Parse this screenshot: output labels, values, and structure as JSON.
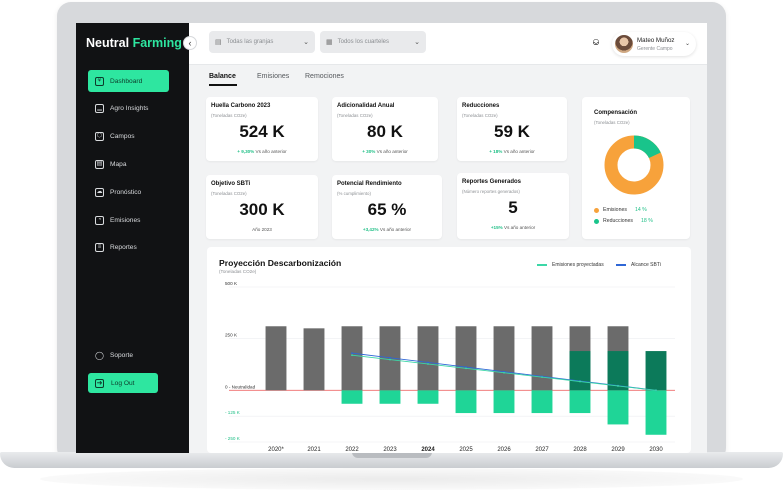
{
  "sidebar": {
    "brand_main": "Neutral",
    "brand_accent": "Farming",
    "items": [
      {
        "label": "Dashboard",
        "icon": "plant-icon",
        "active": true
      },
      {
        "label": "Agro Insights",
        "icon": "bar-chart-icon",
        "active": false
      },
      {
        "label": "Campos",
        "icon": "field-icon",
        "active": false
      },
      {
        "label": "Mapa",
        "icon": "map-icon",
        "active": false
      },
      {
        "label": "Pronóstico",
        "icon": "forecast-icon",
        "active": false
      },
      {
        "label": "Emisiones",
        "icon": "gauge-icon",
        "active": false
      },
      {
        "label": "Reportes",
        "icon": "stack-icon",
        "active": false
      }
    ],
    "support_label": "Soporte",
    "logout_label": "Log Out"
  },
  "topbar": {
    "farms_placeholder": "Todas las granjas",
    "fields_placeholder": "Todos los cuarteles",
    "user_name": "Mateo Muñoz",
    "user_role": "Gerente Campo"
  },
  "tabs": [
    "Balance",
    "Emisiones",
    "Remociones"
  ],
  "cards": {
    "huella": {
      "title": "Huella Carbono 2023",
      "unit": "(Toneladas CO2e)",
      "value": "524 K",
      "delta": "+ 9,30%",
      "delta_label": "Vs año anterior"
    },
    "adicionalidad": {
      "title": "Adicionalidad Anual",
      "unit": "(Toneladas CO2e)",
      "value": "80 K",
      "delta": "+ 30%",
      "delta_label": "Vs año anterior"
    },
    "reducciones": {
      "title": "Reducciones",
      "unit": "(Toneladas CO2e)",
      "value": "59 K",
      "delta": "+ 18%",
      "delta_label": "Vs año anterior"
    },
    "sbti": {
      "title": "Objetivo SBTi",
      "unit": "(Toneladas CO2e)",
      "value": "300 K",
      "delta_label": "Año 2023"
    },
    "rendimiento": {
      "title": "Potencial Rendimiento",
      "unit": "(% cumplimiento)",
      "value": "65 %",
      "delta": "+3,42%",
      "delta_label": "Vs año anterior"
    },
    "reportes": {
      "title": "Reportes Generados",
      "unit": "(Número reportes generados)",
      "value": "5",
      "delta": "+15%",
      "delta_label": "Vs año anterior"
    }
  },
  "compensacion": {
    "title": "Compensación",
    "unit": "(Toneladas CO2e)",
    "legend": [
      {
        "label": "Emisiones",
        "value": "14 %",
        "color": "#f7a23b"
      },
      {
        "label": "Reducciones",
        "value": "18 %",
        "color": "#19c48b"
      }
    ]
  },
  "chart": {
    "title": "Proyección Descarbonización",
    "subtitle": "(Toneladas CO2e)",
    "legend_projected": "Emisiones proyectadas",
    "legend_sbti": "Alcance SBTi",
    "colors": {
      "emissions": "#6b6b6b",
      "reductions_dark": "#0c7a5a",
      "reductions_light": "#1fd597",
      "projected": "#3cd7a7",
      "sbti": "#2f67d6",
      "zero": "#ef6b6b"
    }
  },
  "chart_data": {
    "type": "bar",
    "ytick_labels": [
      "500 K",
      "250 K",
      "0 - Neutralidad",
      "- 125 K",
      "- 250 K"
    ],
    "ytick_values": [
      500,
      250,
      0,
      -125,
      -250
    ],
    "categories": [
      "2020*",
      "2021",
      "2022",
      "2023",
      "2024",
      "2025",
      "2026",
      "2027",
      "2028",
      "2029",
      "2030"
    ],
    "highlight_category": "2024",
    "ylim": [
      -250,
      500
    ],
    "series": [
      {
        "values": [
          310,
          300,
          310,
          310,
          310,
          310,
          310,
          310,
          310,
          310,
          0
        ]
      },
      {
        "values": [
          0,
          0,
          0,
          0,
          0,
          0,
          0,
          0,
          190,
          190,
          190
        ]
      },
      {
        "values": [
          0,
          0,
          -65,
          -65,
          -65,
          -110,
          -110,
          -110,
          -110,
          -165,
          -215
        ]
      }
    ],
    "lines": [
      {
        "name": "Alcance SBTi",
        "x_start": "2022",
        "x_end": "2030",
        "values": [
          180,
          0
        ]
      },
      {
        "name": "Emisiones proyectadas",
        "x_start": "2022",
        "x_end": "2030",
        "values": [
          170,
          0
        ]
      }
    ]
  }
}
